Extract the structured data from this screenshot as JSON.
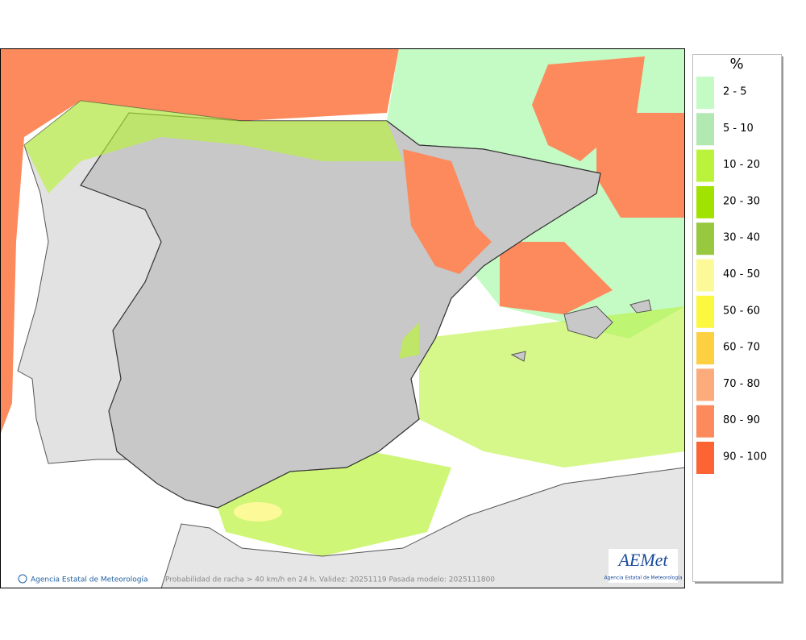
{
  "legend": {
    "title": "%",
    "items": [
      {
        "label": "2 - 5",
        "color": "#c4fac4"
      },
      {
        "label": "5 - 10",
        "color": "#b2e8b2"
      },
      {
        "label": "10 - 20",
        "color": "#baf23c"
      },
      {
        "label": "20 - 30",
        "color": "#a2e200"
      },
      {
        "label": "30 - 40",
        "color": "#98c840"
      },
      {
        "label": "40 - 50",
        "color": "#fcfa98"
      },
      {
        "label": "50 - 60",
        "color": "#fcf840"
      },
      {
        "label": "60 - 70",
        "color": "#fcd040"
      },
      {
        "label": "70 - 80",
        "color": "#fcac7c"
      },
      {
        "label": "80 - 90",
        "color": "#fc8a5c"
      },
      {
        "label": "90 - 100",
        "color": "#fc6434"
      }
    ]
  },
  "footer": {
    "credit": "Agencia Estatal de Meteorología",
    "caption": "Probabilidad de racha > 40 km/h en 24 h. Validez: 20251119 Pasada modelo: 2025111800"
  },
  "logo": {
    "name": "AEMet",
    "subtitle": "Agencia Estatal de Meteorología"
  }
}
